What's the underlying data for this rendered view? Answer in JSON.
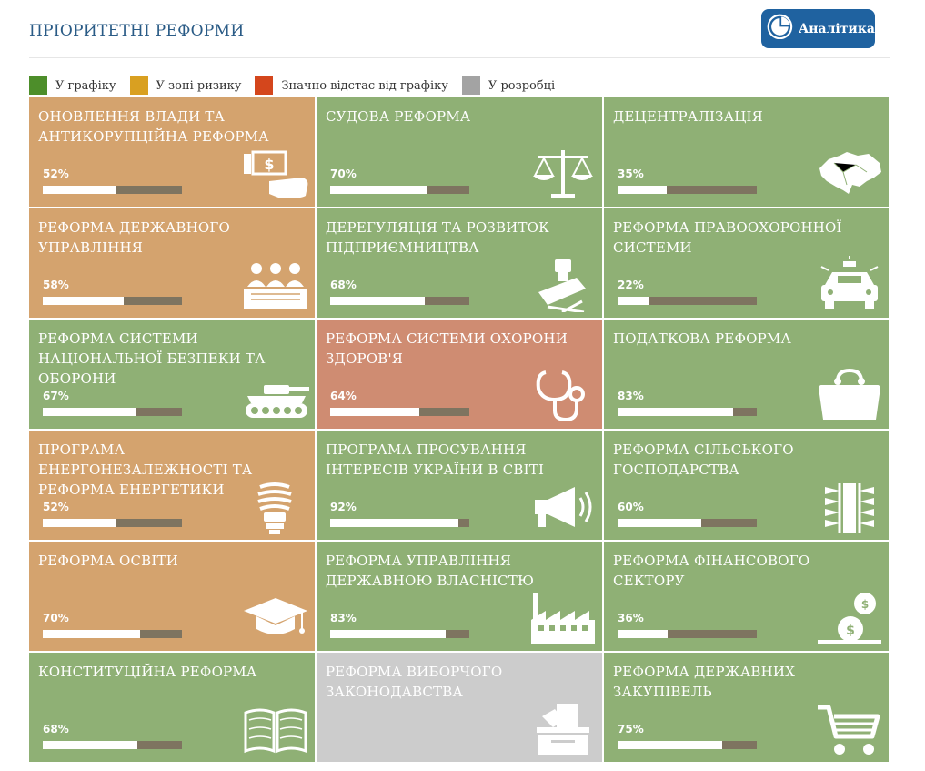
{
  "page": {
    "title": "ПРІОРИТЕТНІ РЕФОРМИ"
  },
  "analytics_button": {
    "label": "Аналітика",
    "icon": "pie-chart-icon"
  },
  "colors": {
    "on_track": "#8fb075",
    "at_risk": "#d4a36e",
    "behind": "#cf8c72",
    "in_development": "#cccccc",
    "bar_track": "#7e7460",
    "button": "#1f62a0",
    "title": "#2a5b86"
  },
  "legend": [
    {
      "label": "У графіку",
      "color": "#4d8e2a"
    },
    {
      "label": "У зоні ризику",
      "color": "#d9a021"
    },
    {
      "label": "Значно відстає від графіку",
      "color": "#d4461c"
    },
    {
      "label": "У розробці",
      "color": "#a3a3a3"
    }
  ],
  "reforms": [
    {
      "title": "Оновлення влади та антикорупційна реформа",
      "percent": "52%",
      "progress": 52,
      "status": "at_risk",
      "icon": "bribe-hand-icon"
    },
    {
      "title": "Судова реформа",
      "percent": "70%",
      "progress": 70,
      "status": "on_track",
      "icon": "scales-icon"
    },
    {
      "title": "Децентралізація",
      "percent": "35%",
      "progress": 35,
      "status": "on_track",
      "icon": "ukraine-map-icon"
    },
    {
      "title": "Реформа державного управління",
      "percent": "58%",
      "progress": 58,
      "status": "at_risk",
      "icon": "officials-desk-icon"
    },
    {
      "title": "Дерегуляція та розвиток підприємництва",
      "percent": "68%",
      "progress": 68,
      "status": "on_track",
      "icon": "stamp-icon"
    },
    {
      "title": "Реформа правоохоронної системи",
      "percent": "22%",
      "progress": 22,
      "status": "on_track",
      "icon": "police-car-icon"
    },
    {
      "title": "Реформа системи національної безпеки та оборони",
      "percent": "67%",
      "progress": 67,
      "status": "on_track",
      "icon": "tank-icon"
    },
    {
      "title": "Реформа системи охорони здоров'я",
      "percent": "64%",
      "progress": 64,
      "status": "behind",
      "icon": "stethoscope-icon"
    },
    {
      "title": "Податкова реформа",
      "percent": "83%",
      "progress": 83,
      "status": "on_track",
      "icon": "purse-icon"
    },
    {
      "title": "Програма енергонезалежності та реформа енергетики",
      "percent": "52%",
      "progress": 52,
      "status": "at_risk",
      "icon": "lightbulb-icon"
    },
    {
      "title": "Програма просування інтересів України в світі",
      "percent": "92%",
      "progress": 92,
      "status": "on_track",
      "icon": "megaphone-icon"
    },
    {
      "title": "Реформа сільського господарства",
      "percent": "60%",
      "progress": 60,
      "status": "on_track",
      "icon": "wheat-icon"
    },
    {
      "title": "Реформа освіти",
      "percent": "70%",
      "progress": 70,
      "status": "at_risk",
      "icon": "graduation-cap-icon"
    },
    {
      "title": "Реформа управління державною власністю",
      "percent": "83%",
      "progress": 83,
      "status": "on_track",
      "icon": "factory-icon"
    },
    {
      "title": "Реформа фінансового сектору",
      "percent": "36%",
      "progress": 36,
      "status": "on_track",
      "icon": "coins-icon"
    },
    {
      "title": "Конституційна реформа",
      "percent": "68%",
      "progress": 68,
      "status": "on_track",
      "icon": "open-book-icon"
    },
    {
      "title": "Реформа виборчого законодавства",
      "percent": "",
      "progress": null,
      "status": "in_development",
      "icon": "ballot-box-icon"
    },
    {
      "title": "Реформа державних закупівель",
      "percent": "75%",
      "progress": 75,
      "status": "on_track",
      "icon": "shopping-cart-icon"
    }
  ]
}
